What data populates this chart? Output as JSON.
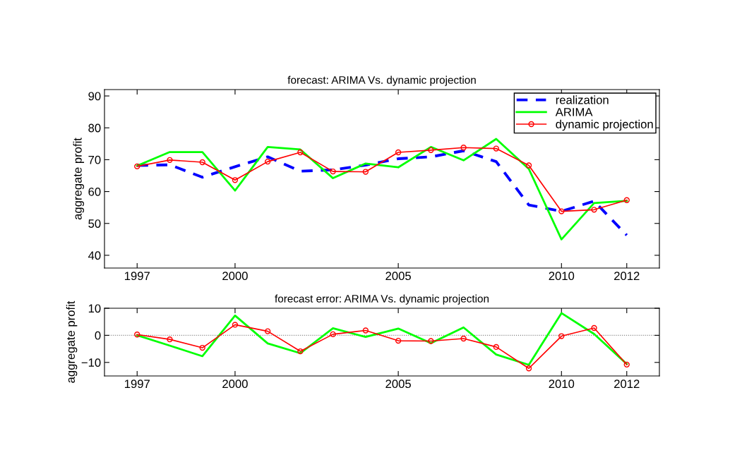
{
  "chart_data": [
    {
      "type": "line",
      "title": "forecast: ARIMA Vs. dynamic projection",
      "ylabel": "aggregate profit",
      "x": [
        1997,
        1998,
        1999,
        2000,
        2001,
        2002,
        2003,
        2004,
        2005,
        2006,
        2007,
        2008,
        2009,
        2010,
        2011,
        2012
      ],
      "xlim": [
        1996,
        2013
      ],
      "xticks": [
        1997,
        2000,
        2005,
        2010,
        2012
      ],
      "ylim": [
        36,
        92
      ],
      "yticks": [
        40,
        50,
        60,
        70,
        80,
        90
      ],
      "grid": false,
      "legend": "top right",
      "series": [
        {
          "name": "realization",
          "color": "#0000ff",
          "line_style": "dashed",
          "marker": "none",
          "values": [
            68.2,
            68.4,
            64.5,
            67.8,
            70.9,
            66.4,
            66.8,
            68.3,
            70.3,
            70.9,
            72.8,
            69.4,
            55.8,
            53.8,
            57.0,
            46.3
          ]
        },
        {
          "name": "ARIMA",
          "color": "#00ff00",
          "line_style": "solid",
          "marker": "none",
          "values": [
            68.1,
            72.4,
            72.4,
            60.3,
            74.0,
            73.2,
            64.2,
            68.8,
            67.6,
            74.0,
            69.8,
            76.5,
            67.1,
            45.0,
            56.4,
            57.1
          ]
        },
        {
          "name": "dynamic projection",
          "color": "#ff0000",
          "line_style": "solid",
          "marker": "circle",
          "values": [
            67.9,
            69.9,
            69.2,
            63.6,
            69.4,
            72.3,
            66.3,
            66.2,
            72.3,
            73.0,
            73.8,
            73.5,
            68.2,
            53.8,
            54.3,
            57.3
          ]
        }
      ]
    },
    {
      "type": "line",
      "title": "forecast error: ARIMA Vs. dynamic projection",
      "ylabel": "aggregate profit",
      "x": [
        1997,
        1998,
        1999,
        2000,
        2001,
        2002,
        2003,
        2004,
        2005,
        2006,
        2007,
        2008,
        2009,
        2010,
        2011,
        2012
      ],
      "xlim": [
        1996,
        2013
      ],
      "xticks": [
        1997,
        2000,
        2005,
        2010,
        2012
      ],
      "ylim": [
        -15,
        10
      ],
      "yticks": [
        {
          "value": -10,
          "label": "−10"
        },
        0,
        10
      ],
      "grid": false,
      "legend": false,
      "ref_lines": [
        {
          "axis": "y",
          "value": 0,
          "label": null,
          "color": "#808080",
          "line_style": "dotted"
        }
      ],
      "series": [
        {
          "color": "#00ff00",
          "line_style": "solid",
          "marker": "none",
          "values": [
            0.0,
            -3.8,
            -7.7,
            7.3,
            -3.0,
            -6.6,
            2.6,
            -0.6,
            2.5,
            -2.9,
            2.9,
            -7.1,
            -10.9,
            8.2,
            0.5,
            -10.6
          ]
        },
        {
          "color": "#ff0000",
          "line_style": "solid",
          "marker": "circle",
          "values": [
            0.3,
            -1.5,
            -4.6,
            3.9,
            1.5,
            -5.9,
            0.4,
            1.8,
            -2.0,
            -2.1,
            -1.2,
            -4.3,
            -12.2,
            -0.3,
            2.7,
            -10.8
          ]
        }
      ]
    }
  ]
}
